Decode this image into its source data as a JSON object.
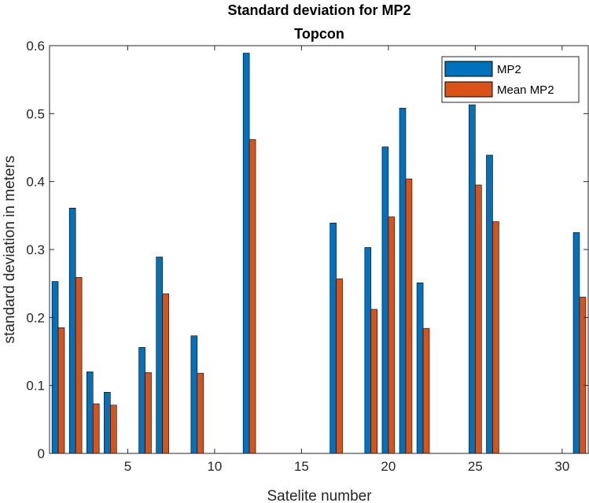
{
  "chart_data": {
    "type": "bar",
    "title": "Standard deviation for MP2",
    "subtitle": "Topcon",
    "xlabel": "Satelite number",
    "ylabel": "standard deviation in meters",
    "xlim": [
      0.5,
      31.5
    ],
    "ylim": [
      0,
      0.6
    ],
    "xticks": [
      5,
      10,
      15,
      20,
      25,
      30
    ],
    "yticks": [
      0,
      0.1,
      0.2,
      0.3,
      0.4,
      0.5,
      0.6
    ],
    "legend_position": "top-right",
    "grid": false,
    "x": [
      1,
      2,
      3,
      4,
      6,
      7,
      9,
      12,
      17,
      19,
      20,
      21,
      22,
      25,
      26,
      31
    ],
    "series": [
      {
        "name": "MP2",
        "color": "#0072BD",
        "values": [
          0.253,
          0.361,
          0.12,
          0.09,
          0.156,
          0.289,
          0.173,
          0.589,
          0.339,
          0.303,
          0.451,
          0.508,
          0.251,
          0.513,
          0.439,
          0.325
        ]
      },
      {
        "name": "Mean MP2",
        "color": "#D95319",
        "values": [
          0.185,
          0.259,
          0.073,
          0.071,
          0.119,
          0.235,
          0.118,
          0.462,
          0.257,
          0.212,
          0.348,
          0.404,
          0.184,
          0.395,
          0.341,
          0.23
        ]
      }
    ]
  }
}
